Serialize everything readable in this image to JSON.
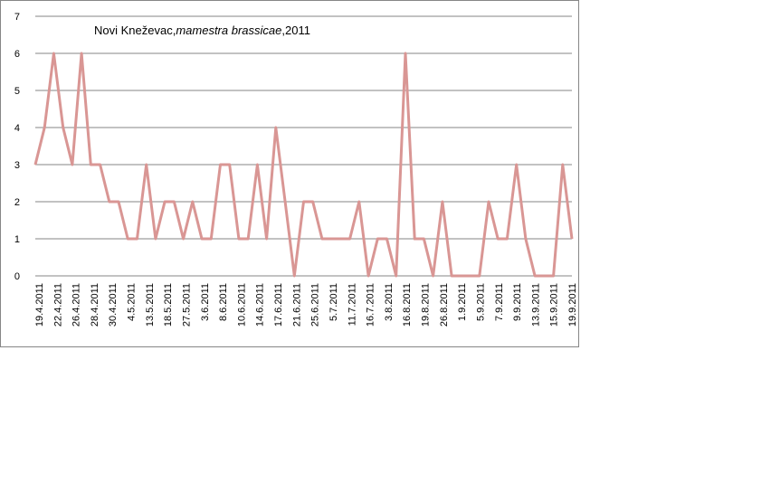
{
  "chart_data": {
    "type": "line",
    "title": "Novi Kneževac,",
    "title_species": "mamestra brassicae",
    "title_year": ",2011",
    "xlabel": "",
    "ylabel": "",
    "ylim": [
      0,
      7
    ],
    "yticks": [
      0,
      1,
      2,
      3,
      4,
      5,
      6,
      7
    ],
    "grid": "horizontal",
    "legend": "none",
    "line_color": "#d99694",
    "gridline_color": "#868686",
    "tick_labels": [
      "19.4.2011",
      "22.4.2011",
      "26.4.2011",
      "28.4.2011",
      "30.4.2011",
      "4.5.2011",
      "13.5.2011",
      "18.5.2011",
      "27.5.2011",
      "3.6.2011",
      "8.6.2011",
      "10.6.2011",
      "14.6.2011",
      "17.6.2011",
      "21.6.2011",
      "25.6.2011",
      "5.7.2011",
      "11.7.2011",
      "16.7.2011",
      "3.8.2011",
      "16.8.2011",
      "19.8.2011",
      "26.8.2011",
      "1.9.2011",
      "5.9.2011",
      "7.9.2011",
      "9.9.2011",
      "13.9.2011",
      "15.9.2011",
      "19.9.2011"
    ],
    "values": [
      3,
      4,
      6,
      4,
      3,
      6,
      3,
      3,
      2,
      2,
      1,
      1,
      3,
      1,
      2,
      2,
      1,
      2,
      1,
      1,
      3,
      3,
      1,
      1,
      3,
      1,
      4,
      2,
      0,
      2,
      2,
      1,
      1,
      1,
      1,
      2,
      0,
      1,
      1,
      0,
      6,
      1,
      1,
      0,
      2,
      0,
      0,
      0,
      0,
      2,
      1,
      1,
      3,
      1,
      0,
      0,
      0,
      3,
      1
    ]
  }
}
